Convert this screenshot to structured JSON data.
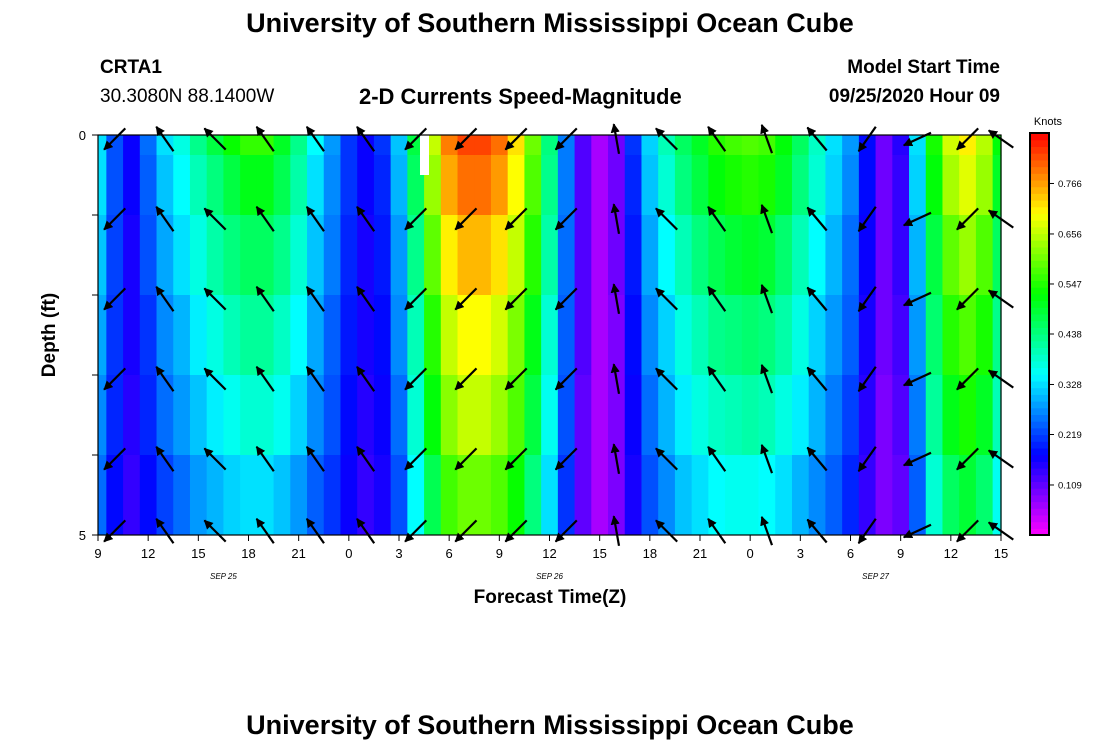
{
  "header": {
    "title": "University of Southern Mississippi Ocean Cube",
    "station_id": "CRTA1",
    "station_coords": "30.3080N 88.1400W",
    "chart_title": "2-D Currents Speed-Magnitude",
    "model_label": "Model Start Time",
    "model_time": "09/25/2020 Hour 09"
  },
  "footer": {
    "title": "University of Southern Mississippi Ocean Cube"
  },
  "chart_data": {
    "type": "heatmap",
    "title": "2-D Currents Speed-Magnitude",
    "xlabel": "Forecast Time(Z)",
    "ylabel": "Depth (ft)",
    "x_ticks": [
      "9",
      "12",
      "15",
      "18",
      "21",
      "0",
      "3",
      "6",
      "9",
      "12",
      "15",
      "18",
      "21",
      "0",
      "3",
      "6",
      "9",
      "12",
      "15"
    ],
    "date_labels": [
      {
        "text": "SEP 25",
        "tick_index": 2.5
      },
      {
        "text": "SEP 26",
        "tick_index": 9
      },
      {
        "text": "SEP 27",
        "tick_index": 15.5
      }
    ],
    "y_range": [
      0,
      5
    ],
    "y_tick_labels": [
      "0",
      "5"
    ],
    "y_ticks": [
      0,
      1,
      2,
      3,
      4,
      5
    ],
    "colorbar": {
      "units": "Knots",
      "min": 0,
      "max": 0.876,
      "tick_values": [
        0.109,
        0.219,
        0.328,
        0.438,
        0.547,
        0.656,
        0.766
      ],
      "tick_labels": [
        "0.109",
        "0.219",
        "0.328",
        "0.438",
        "0.547",
        "0.656",
        "0.766"
      ]
    },
    "time_hours": [
      0,
      1,
      2,
      3,
      4,
      5,
      6,
      7,
      8,
      9,
      10,
      11,
      12,
      13,
      14,
      15,
      16,
      17,
      18,
      19,
      20,
      21,
      22,
      23,
      24,
      25,
      26,
      27,
      28,
      29,
      30,
      31,
      32,
      33,
      34,
      35,
      36,
      37,
      38,
      39,
      40,
      41,
      42,
      43,
      44,
      45,
      46,
      47,
      48,
      49,
      50,
      51,
      52,
      53,
      54
    ],
    "depth_levels": [
      0,
      0.5,
      1.5,
      2.5,
      3.5,
      4.5
    ],
    "speed_knots": [
      [
        0.33,
        0.23,
        0.17,
        0.25,
        0.33,
        0.37,
        0.43,
        0.48,
        0.53,
        0.56,
        0.56,
        0.5,
        0.43,
        0.35,
        0.28,
        0.21,
        0.17,
        0.21,
        0.31,
        0.48,
        0.66,
        0.79,
        0.83,
        0.83,
        0.8,
        0.72,
        0.6,
        0.44,
        0.26,
        0.12,
        0.06,
        0.1,
        0.21,
        0.32,
        0.4,
        0.46,
        0.5,
        0.55,
        0.57,
        0.58,
        0.57,
        0.52,
        0.46,
        0.39,
        0.33,
        0.28,
        0.18,
        0.1,
        0.15,
        0.33,
        0.54,
        0.67,
        0.71,
        0.65,
        0.52
      ],
      [
        0.33,
        0.23,
        0.17,
        0.24,
        0.31,
        0.35,
        0.4,
        0.44,
        0.48,
        0.51,
        0.51,
        0.47,
        0.41,
        0.33,
        0.27,
        0.21,
        0.17,
        0.2,
        0.3,
        0.46,
        0.63,
        0.76,
        0.8,
        0.8,
        0.77,
        0.7,
        0.58,
        0.43,
        0.26,
        0.12,
        0.06,
        0.1,
        0.2,
        0.31,
        0.38,
        0.44,
        0.48,
        0.52,
        0.54,
        0.55,
        0.54,
        0.5,
        0.44,
        0.38,
        0.32,
        0.27,
        0.18,
        0.1,
        0.14,
        0.32,
        0.52,
        0.64,
        0.68,
        0.63,
        0.5
      ],
      [
        0.31,
        0.22,
        0.16,
        0.23,
        0.29,
        0.33,
        0.37,
        0.41,
        0.44,
        0.46,
        0.46,
        0.43,
        0.38,
        0.31,
        0.26,
        0.2,
        0.16,
        0.19,
        0.28,
        0.43,
        0.59,
        0.71,
        0.75,
        0.75,
        0.72,
        0.66,
        0.55,
        0.41,
        0.25,
        0.12,
        0.06,
        0.1,
        0.19,
        0.29,
        0.35,
        0.4,
        0.44,
        0.47,
        0.49,
        0.5,
        0.49,
        0.45,
        0.4,
        0.35,
        0.3,
        0.25,
        0.17,
        0.1,
        0.14,
        0.3,
        0.48,
        0.59,
        0.63,
        0.58,
        0.46
      ],
      [
        0.29,
        0.21,
        0.16,
        0.21,
        0.27,
        0.3,
        0.34,
        0.37,
        0.4,
        0.42,
        0.42,
        0.39,
        0.35,
        0.29,
        0.24,
        0.19,
        0.16,
        0.18,
        0.27,
        0.4,
        0.55,
        0.66,
        0.7,
        0.7,
        0.67,
        0.61,
        0.51,
        0.38,
        0.24,
        0.12,
        0.06,
        0.09,
        0.18,
        0.27,
        0.32,
        0.37,
        0.4,
        0.43,
        0.44,
        0.45,
        0.44,
        0.41,
        0.37,
        0.32,
        0.28,
        0.24,
        0.16,
        0.1,
        0.13,
        0.28,
        0.45,
        0.55,
        0.58,
        0.54,
        0.43
      ],
      [
        0.27,
        0.2,
        0.15,
        0.2,
        0.25,
        0.28,
        0.31,
        0.34,
        0.36,
        0.38,
        0.38,
        0.36,
        0.32,
        0.27,
        0.23,
        0.18,
        0.15,
        0.17,
        0.25,
        0.38,
        0.52,
        0.62,
        0.66,
        0.66,
        0.63,
        0.58,
        0.48,
        0.36,
        0.23,
        0.11,
        0.06,
        0.09,
        0.17,
        0.25,
        0.3,
        0.34,
        0.37,
        0.39,
        0.4,
        0.41,
        0.4,
        0.37,
        0.34,
        0.3,
        0.26,
        0.22,
        0.15,
        0.09,
        0.12,
        0.26,
        0.42,
        0.51,
        0.54,
        0.5,
        0.4
      ],
      [
        0.25,
        0.18,
        0.14,
        0.18,
        0.22,
        0.25,
        0.28,
        0.3,
        0.32,
        0.33,
        0.33,
        0.31,
        0.28,
        0.24,
        0.21,
        0.17,
        0.14,
        0.16,
        0.23,
        0.35,
        0.47,
        0.57,
        0.6,
        0.6,
        0.58,
        0.53,
        0.44,
        0.33,
        0.21,
        0.11,
        0.06,
        0.09,
        0.16,
        0.23,
        0.27,
        0.31,
        0.33,
        0.35,
        0.36,
        0.36,
        0.35,
        0.33,
        0.3,
        0.27,
        0.24,
        0.2,
        0.14,
        0.09,
        0.11,
        0.24,
        0.38,
        0.46,
        0.49,
        0.45,
        0.36
      ]
    ],
    "vector_times": [
      1,
      4,
      7,
      10,
      13,
      16,
      19,
      22,
      25,
      28,
      31,
      34,
      37,
      40,
      43,
      46,
      49,
      52,
      54
    ],
    "vector_depths": [
      0.05,
      1.05,
      2.05,
      3.05,
      4.05,
      4.95
    ],
    "vector_directions_deg": [
      135,
      235,
      225,
      235,
      235,
      235,
      135,
      135,
      135,
      135,
      260,
      225,
      235,
      250,
      230,
      125,
      155,
      135,
      215
    ]
  }
}
